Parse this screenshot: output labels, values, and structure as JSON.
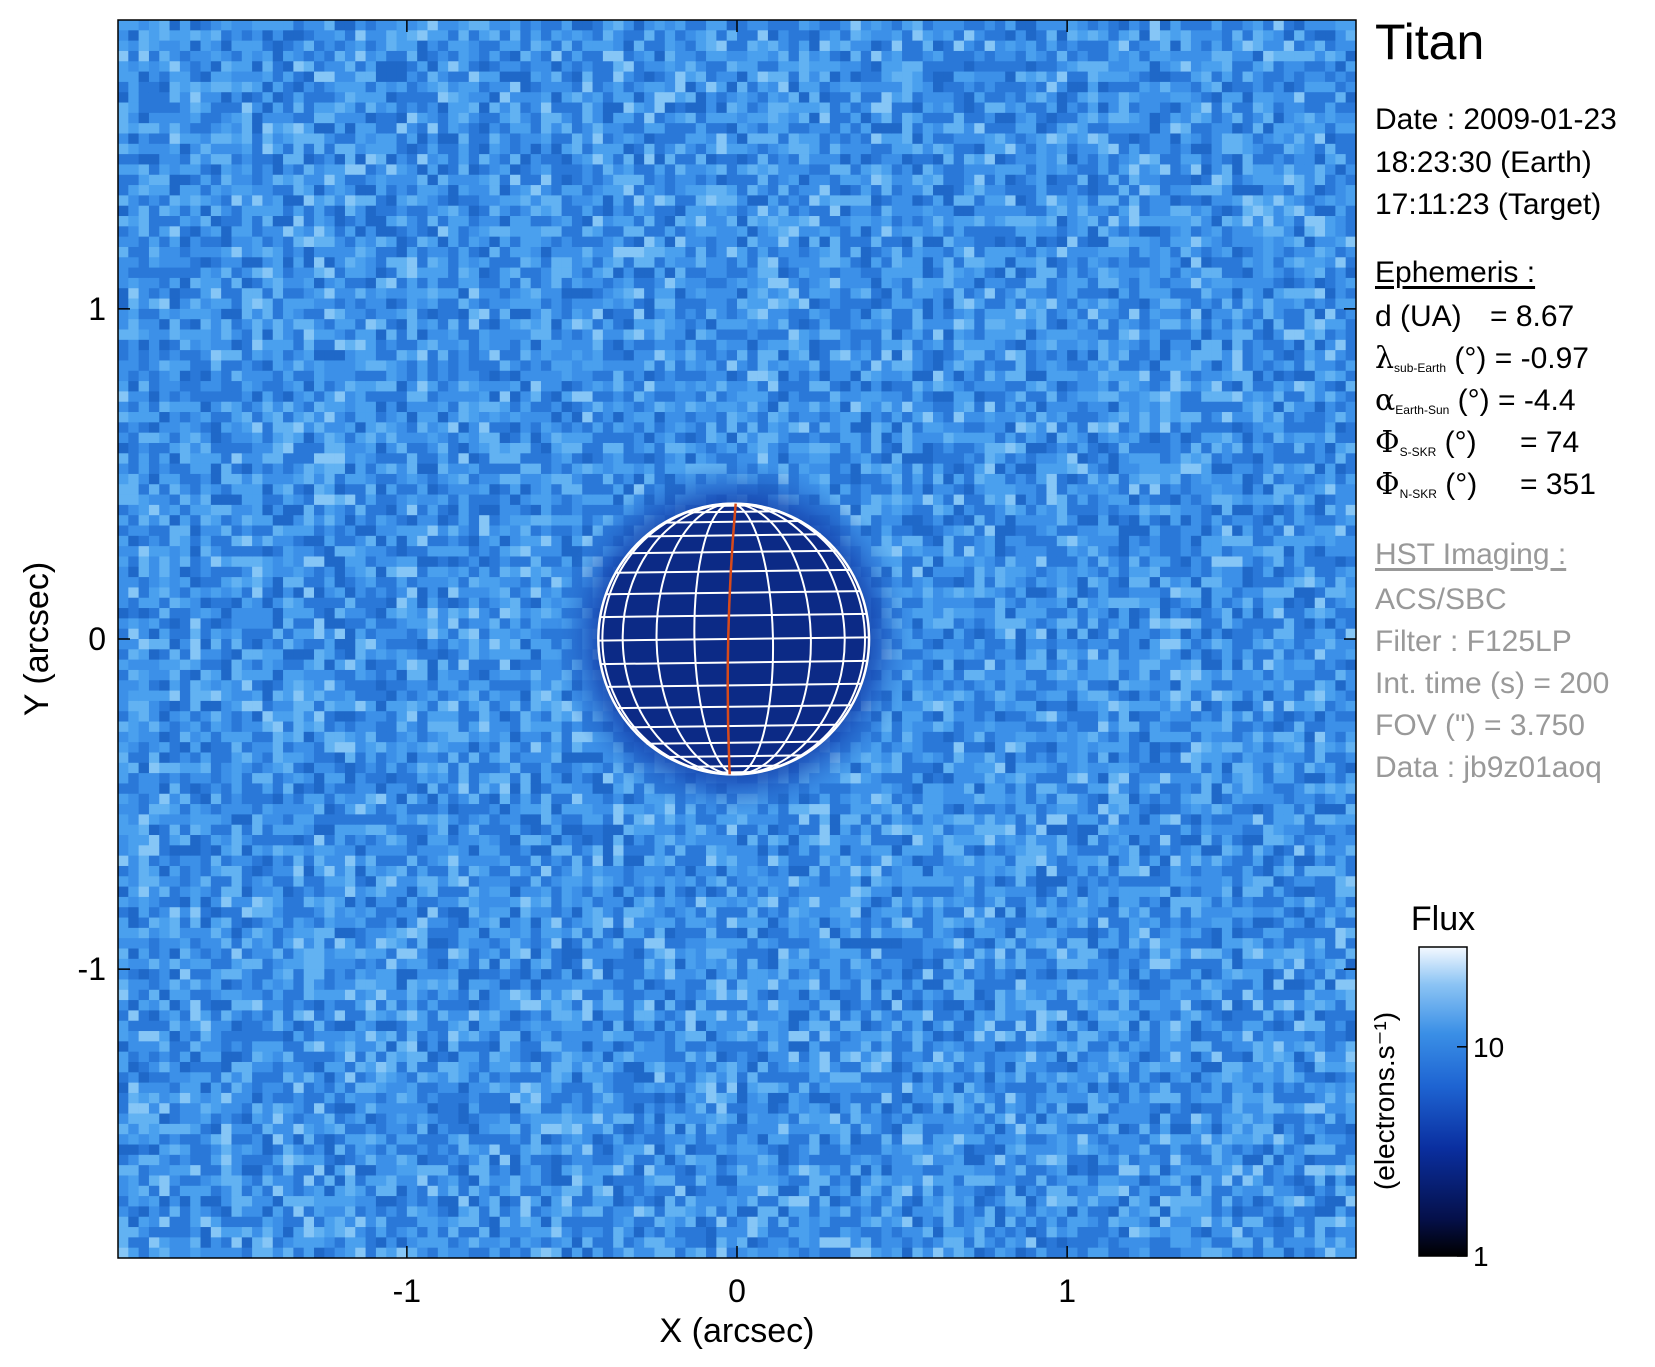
{
  "chart_data": {
    "type": "heatmap",
    "title": "",
    "xlabel": "X (arcsec)",
    "ylabel": "Y (arcsec)",
    "xlim": [
      -1.875,
      1.875
    ],
    "ylim": [
      -1.875,
      1.875
    ],
    "x_ticks": [
      -1,
      0,
      1
    ],
    "y_ticks": [
      -1,
      0,
      1
    ],
    "x_tick_labels": [
      "-1",
      "0",
      "1"
    ],
    "y_tick_labels": [
      "-1",
      "0",
      "1"
    ],
    "target_disk": {
      "center_x": -0.01,
      "center_y": 0.0,
      "radius": 0.41,
      "grid_color": "#ffffff",
      "meridian_color": "#d84a1a"
    },
    "colorbar": {
      "title": "Flux",
      "label": "(electrons.s⁻¹)",
      "scale": "log",
      "range": [
        1,
        30
      ],
      "ticks": [
        1,
        10
      ],
      "tick_labels": [
        "1",
        "10"
      ]
    },
    "colors": {
      "background_blue": "#3a8fe6",
      "disk_dark": "#0c2a86",
      "frame": "#000000"
    }
  },
  "info": {
    "target": "Titan",
    "date_line": "Date : 2009-01-23",
    "earth_time": "18:23:30 (Earth)",
    "target_time": "17:11:23 (Target)",
    "ephemeris_title": "Ephemeris :",
    "d_label": "d (UA)",
    "d_value": "= 8.67",
    "lambda_symbol": "λ",
    "lambda_sub": "sub-Earth",
    "lambda_unit": "(°)",
    "lambda_value": "= -0.97",
    "alpha_symbol": "α",
    "alpha_sub": "Earth-Sun",
    "alpha_unit": "(°)",
    "alpha_value": "= -4.4",
    "phi_symbol": "Φ",
    "phi_s_sub": "S-SKR",
    "phi_s_unit": "(°)",
    "phi_s_value": "= 74",
    "phi_n_sub": "N-SKR",
    "phi_n_unit": "(°)",
    "phi_n_value": "= 351",
    "hst_title": "HST Imaging :",
    "instrument": "ACS/SBC",
    "filter": "Filter : F125LP",
    "int_time": "Int. time (s) = 200",
    "fov": "FOV (\") = 3.750",
    "data_id": "Data : jb9z01aoq"
  }
}
